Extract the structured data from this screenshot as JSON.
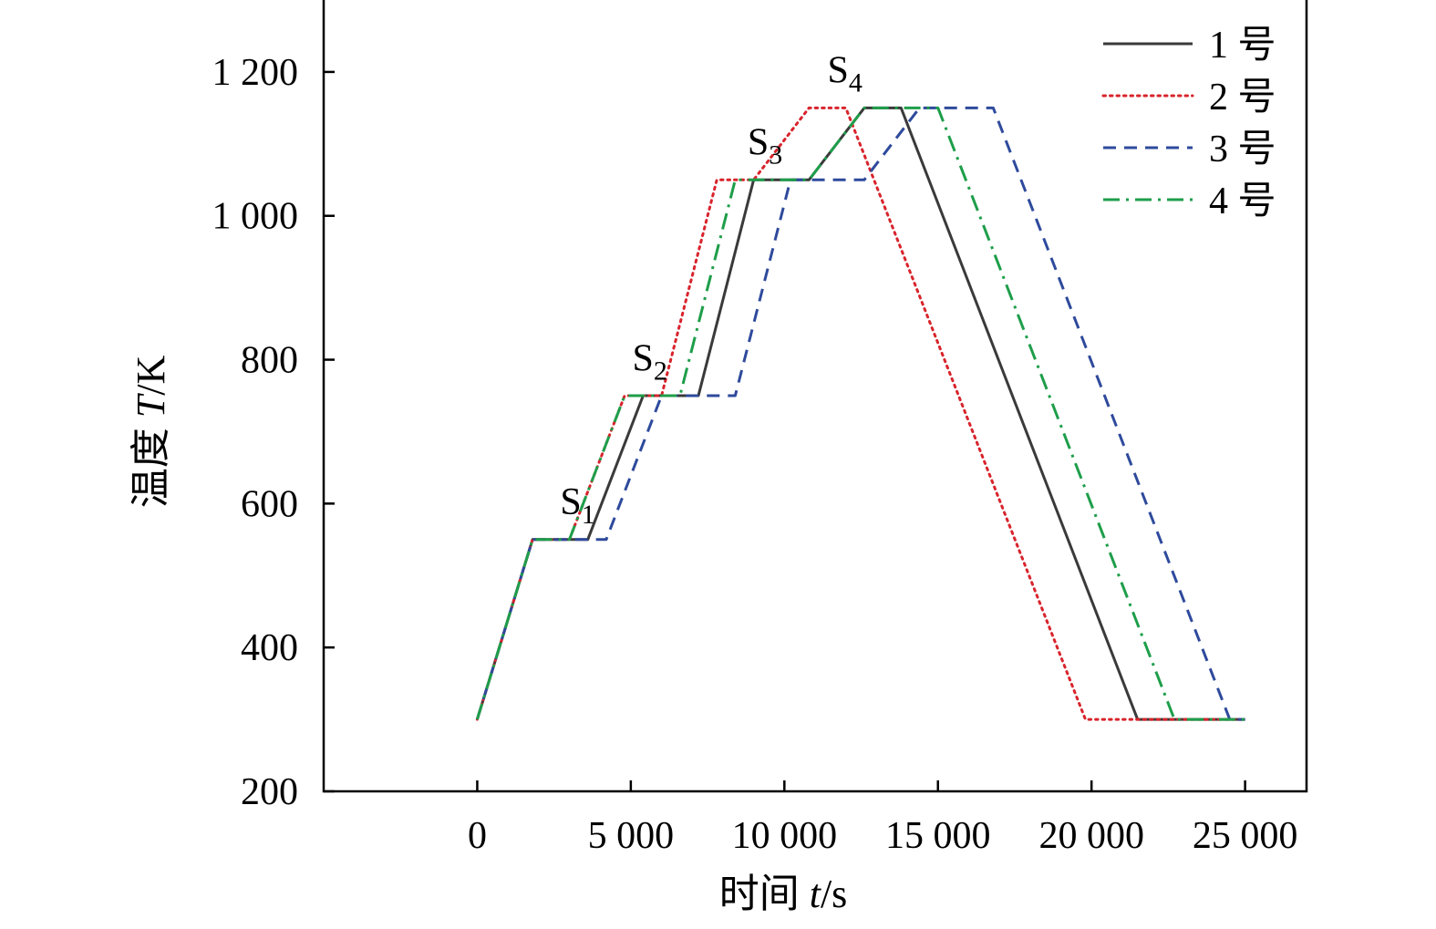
{
  "chart_data": {
    "type": "line",
    "title": "",
    "xlabel": {
      "prefix": "时间 ",
      "var": "t",
      "suffix": "/s"
    },
    "ylabel": {
      "prefix": "温度 ",
      "var": "T",
      "suffix": "/K"
    },
    "xlim": [
      -5000,
      27000
    ],
    "ylim": [
      200,
      1300
    ],
    "xticks": [
      {
        "value": 0,
        "label": "0"
      },
      {
        "value": 5000,
        "label": "5 000"
      },
      {
        "value": 10000,
        "label": "10 000"
      },
      {
        "value": 15000,
        "label": "15 000"
      },
      {
        "value": 20000,
        "label": "20 000"
      },
      {
        "value": 25000,
        "label": "25 000"
      }
    ],
    "yticks": [
      {
        "value": 200,
        "label": "200"
      },
      {
        "value": 400,
        "label": "400"
      },
      {
        "value": 600,
        "label": "600"
      },
      {
        "value": 800,
        "label": "800"
      },
      {
        "value": 1000,
        "label": "1 000"
      },
      {
        "value": 1200,
        "label": "1 200"
      }
    ],
    "grid": false,
    "legend_position": "top-right",
    "series": [
      {
        "name": "1 号",
        "color": "#3a3a3a",
        "style": "solid",
        "x": [
          0,
          1800,
          3600,
          5400,
          7200,
          9000,
          10800,
          12600,
          13800,
          21500,
          25000
        ],
        "y": [
          300,
          550,
          550,
          750,
          750,
          1050,
          1050,
          1150,
          1150,
          300,
          300
        ]
      },
      {
        "name": "2 号",
        "color": "#d8242c",
        "style": "dotted",
        "x": [
          0,
          1800,
          3000,
          4800,
          6000,
          7800,
          9000,
          10800,
          12000,
          19800,
          25000
        ],
        "y": [
          300,
          550,
          550,
          750,
          750,
          1050,
          1050,
          1150,
          1150,
          300,
          300
        ]
      },
      {
        "name": "3 号",
        "color": "#2e4a9c",
        "style": "dashed",
        "x": [
          0,
          1800,
          4200,
          6000,
          8400,
          10200,
          12600,
          14400,
          16800,
          24500,
          25000
        ],
        "y": [
          300,
          550,
          550,
          750,
          750,
          1050,
          1050,
          1150,
          1150,
          300,
          300
        ]
      },
      {
        "name": "4 号",
        "color": "#1e9e4a",
        "style": "dashdot",
        "x": [
          0,
          1800,
          3000,
          4800,
          6600,
          8400,
          10800,
          12600,
          15000,
          22700,
          25000
        ],
        "y": [
          300,
          550,
          550,
          750,
          750,
          1050,
          1050,
          1150,
          1150,
          300,
          300
        ]
      }
    ],
    "annotations": [
      {
        "main": "S",
        "sub": "1",
        "x": 2700,
        "y": 585
      },
      {
        "main": "S",
        "sub": "2",
        "x": 5050,
        "y": 785
      },
      {
        "main": "S",
        "sub": "3",
        "x": 8800,
        "y": 1085
      },
      {
        "main": "S",
        "sub": "4",
        "x": 11400,
        "y": 1185
      }
    ]
  }
}
